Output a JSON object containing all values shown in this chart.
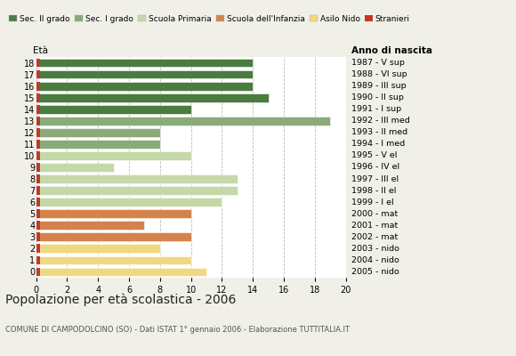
{
  "ages": [
    18,
    17,
    16,
    15,
    14,
    13,
    12,
    11,
    10,
    9,
    8,
    7,
    6,
    5,
    4,
    3,
    2,
    1,
    0
  ],
  "year_labels": [
    "1987 - V sup",
    "1988 - VI sup",
    "1989 - III sup",
    "1990 - II sup",
    "1991 - I sup",
    "1992 - III med",
    "1993 - II med",
    "1994 - I med",
    "1995 - V el",
    "1996 - IV el",
    "1997 - III el",
    "1998 - II el",
    "1999 - I el",
    "2000 - mat",
    "2001 - mat",
    "2002 - mat",
    "2003 - nido",
    "2004 - nido",
    "2005 - nido"
  ],
  "values": [
    14,
    14,
    14,
    15,
    10,
    19,
    8,
    8,
    10,
    5,
    13,
    13,
    12,
    10,
    7,
    10,
    8,
    10,
    11
  ],
  "bar_colors": [
    "#4a7c40",
    "#4a7c40",
    "#4a7c40",
    "#4a7c40",
    "#4a7c40",
    "#8aab78",
    "#8aab78",
    "#8aab78",
    "#c5d9a8",
    "#c5d9a8",
    "#c5d9a8",
    "#c5d9a8",
    "#c5d9a8",
    "#d4834a",
    "#d4834a",
    "#d4834a",
    "#f0d880",
    "#f0d880",
    "#f0d880"
  ],
  "stranieri_color": "#c0392b",
  "legend_labels": [
    "Sec. II grado",
    "Sec. I grado",
    "Scuola Primaria",
    "Scuola dell'Infanzia",
    "Asilo Nido",
    "Stranieri"
  ],
  "legend_colors": [
    "#4a7c40",
    "#8aab78",
    "#c5d9a8",
    "#d4834a",
    "#f0d880",
    "#c0392b"
  ],
  "label_eta": "Età",
  "label_anno": "Anno di nascita",
  "title": "Popolazione per età scolastica - 2006",
  "subtitle": "COMUNE DI CAMPODOLCINO (SO) - Dati ISTAT 1° gennaio 2006 - Elaborazione TUTTITALIA.IT",
  "xlim": [
    0,
    20
  ],
  "xticks": [
    0,
    2,
    4,
    6,
    8,
    10,
    12,
    14,
    16,
    18,
    20
  ],
  "background_color": "#f0f0e8",
  "plot_bg_color": "#ffffff",
  "grid_color": "#bbbbbb"
}
